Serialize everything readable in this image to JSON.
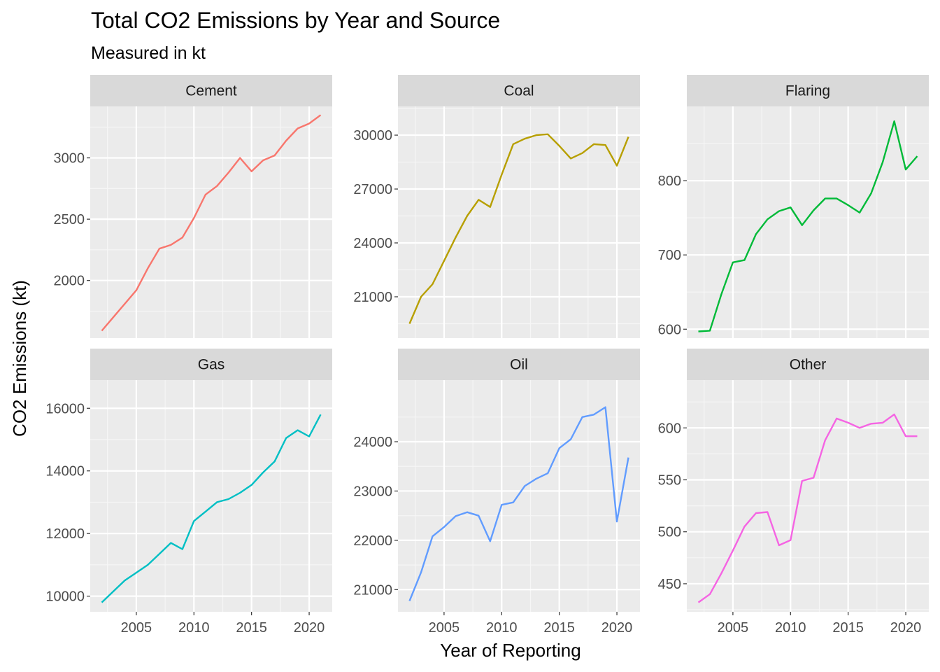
{
  "title": "Total CO2 Emissions by Year and Source",
  "subtitle": "Measured in kt",
  "chart_data": {
    "type": "line",
    "title": "Total CO2 Emissions by Year and Source",
    "subtitle": "Measured in kt",
    "xlabel": "Year of Reporting",
    "ylabel": "CO2 Emissions (kt)",
    "x": [
      2002,
      2003,
      2004,
      2005,
      2006,
      2007,
      2008,
      2009,
      2010,
      2011,
      2012,
      2013,
      2014,
      2015,
      2016,
      2017,
      2018,
      2019,
      2020,
      2021
    ],
    "x_ticks": [
      "2005",
      "2010",
      "2015",
      "2020"
    ],
    "xlim": [
      2001,
      2022
    ],
    "grid": true,
    "legend": "none",
    "panels": [
      {
        "name": "Cement",
        "color": "#F8766D",
        "ylim": [
          1530,
          3420
        ],
        "y_ticks": [
          "2000",
          "2500",
          "3000"
        ],
        "values": [
          1590,
          1700,
          1810,
          1920,
          2100,
          2260,
          2290,
          2350,
          2510,
          2700,
          2770,
          2880,
          3000,
          2890,
          2980,
          3020,
          3140,
          3240,
          3280,
          3350
        ]
      },
      {
        "name": "Coal",
        "color": "#B79F00",
        "ylim": [
          18700,
          31600
        ],
        "y_ticks": [
          "21000",
          "24000",
          "27000",
          "30000"
        ],
        "values": [
          19500,
          21000,
          21700,
          23000,
          24300,
          25500,
          26400,
          26000,
          27800,
          29500,
          29800,
          30000,
          30050,
          29400,
          28700,
          29000,
          29500,
          29450,
          28300,
          29900
        ]
      },
      {
        "name": "Flaring",
        "color": "#00BA38",
        "ylim": [
          588,
          900
        ],
        "y_ticks": [
          "600",
          "700",
          "800"
        ],
        "values": [
          597,
          598,
          647,
          690,
          693,
          728,
          748,
          759,
          764,
          740,
          760,
          776,
          776,
          767,
          757,
          783,
          825,
          880,
          815,
          833
        ]
      },
      {
        "name": "Gas",
        "color": "#00BFC4",
        "ylim": [
          9500,
          16900
        ],
        "y_ticks": [
          "10000",
          "12000",
          "14000",
          "16000"
        ],
        "values": [
          9800,
          10150,
          10500,
          10750,
          11000,
          11350,
          11700,
          11500,
          12400,
          12700,
          13000,
          13100,
          13300,
          13550,
          13950,
          14300,
          15050,
          15300,
          15100,
          15800
        ]
      },
      {
        "name": "Oil",
        "color": "#619CFF",
        "ylim": [
          20550,
          25250
        ],
        "y_ticks": [
          "21000",
          "22000",
          "23000",
          "24000"
        ],
        "values": [
          20770,
          21350,
          22080,
          22270,
          22490,
          22570,
          22500,
          21980,
          22720,
          22770,
          23100,
          23250,
          23360,
          23870,
          24050,
          24500,
          24550,
          24700,
          22380,
          23680
        ]
      },
      {
        "name": "Other",
        "color": "#F564E3",
        "ylim": [
          423,
          646
        ],
        "y_ticks": [
          "450",
          "500",
          "550",
          "600"
        ],
        "values": [
          432,
          440,
          460,
          482,
          505,
          518,
          519,
          487,
          492,
          549,
          552,
          588,
          609,
          605,
          600,
          604,
          605,
          613,
          592,
          592
        ]
      }
    ]
  }
}
